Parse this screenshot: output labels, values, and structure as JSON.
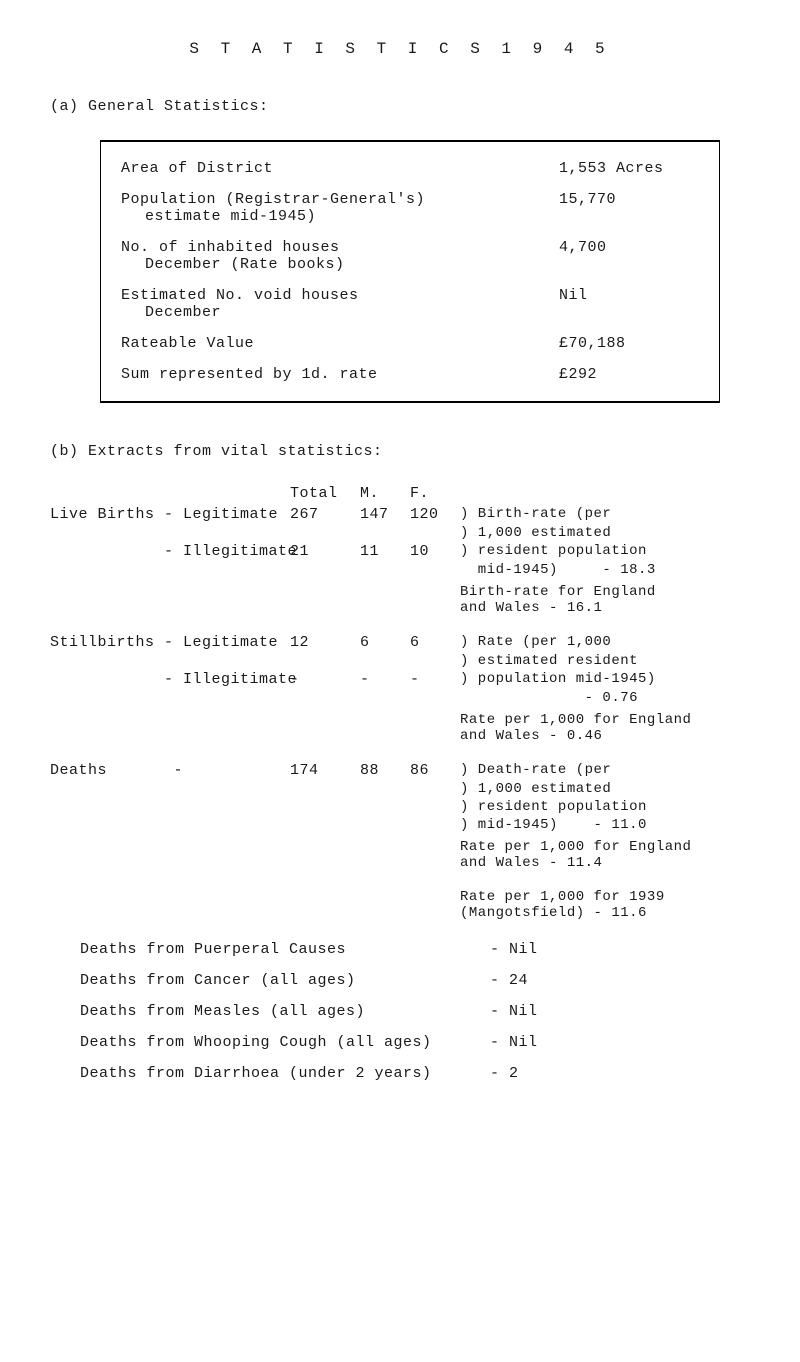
{
  "title": "S T A T I S T I C S     1 9 4 5",
  "sectionA": {
    "heading": "(a)  General Statistics:",
    "rows": [
      {
        "label": "Area of District",
        "sub": "",
        "value": "1,553 Acres"
      },
      {
        "label": "Population (Registrar-General's)",
        "sub": "estimate mid-1945)",
        "value": "15,770"
      },
      {
        "label": "No. of inhabited houses",
        "sub": "December (Rate books)",
        "value": "4,700"
      },
      {
        "label": "Estimated No. void houses",
        "sub": "December",
        "value": "Nil"
      },
      {
        "label": "Rateable Value",
        "sub": "",
        "value": "£70,188"
      },
      {
        "label": "Sum represented by 1d. rate",
        "sub": "",
        "value": "£292"
      }
    ]
  },
  "sectionB": {
    "heading": "(b)  Extracts from vital statistics:",
    "header": {
      "total": "Total",
      "m": "M.",
      "f": "F."
    },
    "liveBirths": {
      "legit": {
        "label": "Live Births - Legitimate",
        "total": "267",
        "m": "147",
        "f": "120",
        "note": ") Birth-rate (per"
      },
      "noteLine2": ") 1,000 estimated",
      "illegit": {
        "label": "            - Illegitimate",
        "total": "21",
        "m": "11",
        "f": "10",
        "note": ") resident population"
      },
      "noteLine4": "  mid-1945)     - 18.3"
    },
    "birthRateEW": "Birth-rate for England\nand Wales        - 16.1",
    "stillbirths": {
      "legit": {
        "label": "Stillbirths - Legitimate",
        "total": "12",
        "m": "6",
        "f": "6",
        "note": ") Rate (per 1,000"
      },
      "noteLine2": ") estimated resident",
      "illegit": {
        "label": "            - Illegitimate",
        "total": "-",
        "m": "-",
        "f": "-",
        "note": ") population mid-1945)"
      },
      "noteLine4": "              - 0.76"
    },
    "rateEW1": "Rate per 1,000 for England\nand Wales          - 0.46",
    "deaths": {
      "row": {
        "label": "Deaths       -",
        "total": "174",
        "m": "88",
        "f": "86",
        "note": ") Death-rate (per"
      },
      "noteLine2": ") 1,000 estimated",
      "noteLine3": ") resident population",
      "noteLine4": ") mid-1945)    - 11.0"
    },
    "rateEW2": "Rate per 1,000 for England\nand Wales         - 11.4",
    "rate1939": "Rate per 1,000 for 1939\n(Mangotsfield)    - 11.6",
    "causes": [
      {
        "label": "Deaths from Puerperal Causes",
        "value": "- Nil"
      },
      {
        "label": "Deaths from Cancer (all ages)",
        "value": "- 24"
      },
      {
        "label": "Deaths from Measles (all ages)",
        "value": "- Nil"
      },
      {
        "label": "Deaths from Whooping Cough (all ages)",
        "value": "- Nil"
      },
      {
        "label": "Deaths from Diarrhoea (under 2 years)",
        "value": "- 2"
      }
    ]
  }
}
